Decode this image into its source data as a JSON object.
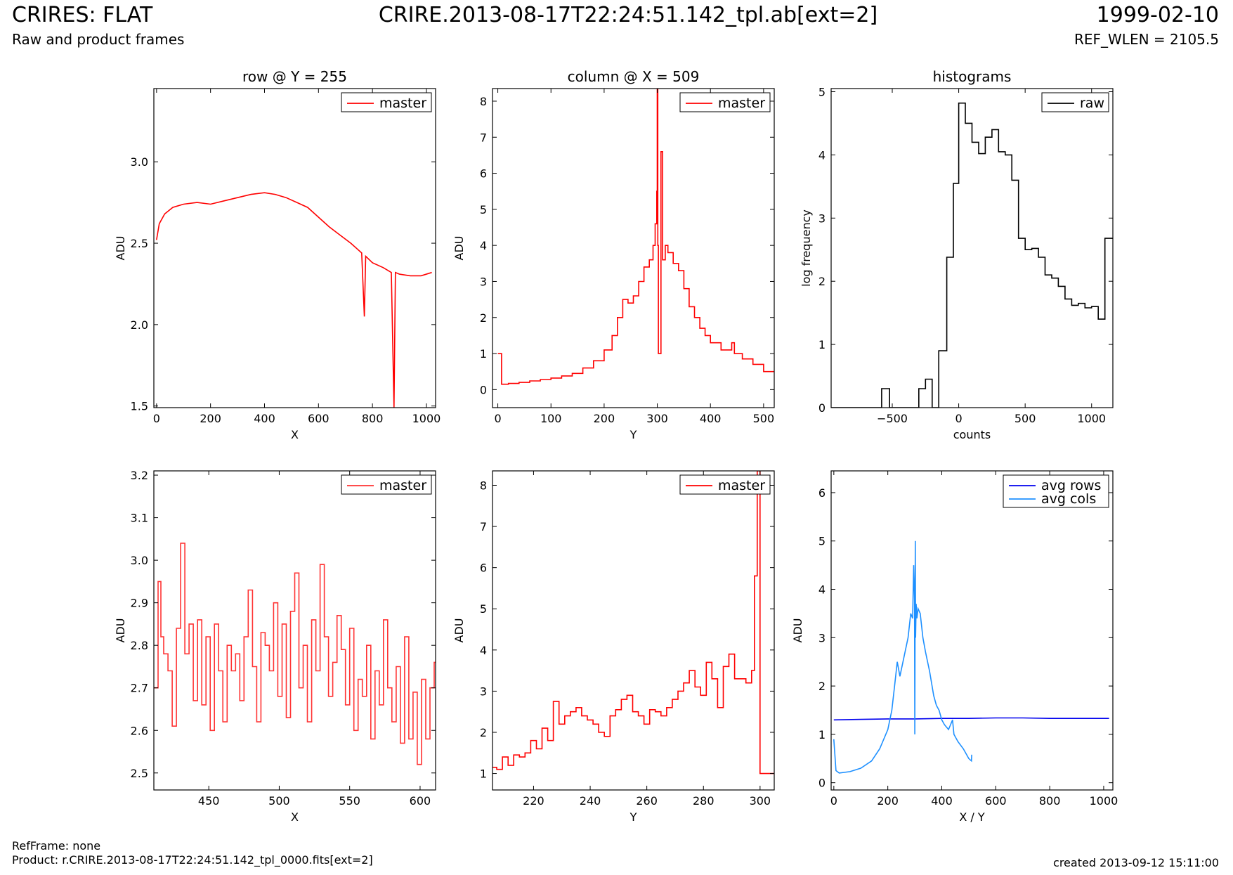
{
  "header": {
    "title": "CRIRES: FLAT",
    "subtitle": "Raw and product frames",
    "file": "CRIRE.2013-08-17T22:24:51.142_tpl.ab[ext=2]",
    "date": "1999-02-10",
    "ref_wlen": "REF_WLEN = 2105.5"
  },
  "footer": {
    "ref_frame": "RefFrame: none",
    "product": "Product: r.CRIRE.2013-08-17T22:24:51.142_tpl_0000.fits[ext=2]",
    "created": "created 2013-09-12 15:11:00"
  },
  "chart_data": [
    {
      "type": "line",
      "title": "row @ Y = 255",
      "xlabel": "X",
      "ylabel": "ADU",
      "xlim": [
        -10,
        1034
      ],
      "ylim": [
        1.49,
        3.45
      ],
      "xticks": [
        0,
        200,
        400,
        600,
        800,
        1000
      ],
      "yticks": [
        1.5,
        2.0,
        2.5,
        3.0
      ],
      "ytick_labels": [
        "1.5",
        "2.0",
        "2.5",
        "3.0"
      ],
      "legend_position": "top-right",
      "series": [
        {
          "name": "master",
          "color": "#ff0000",
          "step": false,
          "x": [
            0,
            10,
            30,
            60,
            100,
            150,
            200,
            250,
            300,
            350,
            400,
            440,
            480,
            520,
            560,
            600,
            640,
            680,
            720,
            760,
            770,
            775,
            800,
            840,
            870,
            880,
            885,
            900,
            940,
            980,
            1020
          ],
          "y": [
            2.52,
            2.62,
            2.68,
            2.72,
            2.74,
            2.75,
            2.74,
            2.76,
            2.78,
            2.8,
            2.81,
            2.8,
            2.78,
            2.75,
            2.72,
            2.66,
            2.6,
            2.55,
            2.5,
            2.44,
            2.05,
            2.42,
            2.38,
            2.35,
            2.32,
            1.49,
            2.32,
            2.31,
            2.3,
            2.3,
            2.32
          ]
        }
      ]
    },
    {
      "type": "line",
      "title": "column @ X = 509",
      "xlabel": "Y",
      "ylabel": "ADU",
      "xlim": [
        -10,
        520
      ],
      "ylim": [
        -0.5,
        8.35
      ],
      "xticks": [
        0,
        100,
        200,
        300,
        400,
        500
      ],
      "yticks": [
        0,
        1,
        2,
        3,
        4,
        5,
        6,
        7,
        8
      ],
      "legend_position": "top-right",
      "series": [
        {
          "name": "master",
          "color": "#ff0000",
          "step": true,
          "x": [
            0,
            6,
            7,
            20,
            40,
            60,
            80,
            100,
            120,
            140,
            160,
            180,
            200,
            215,
            225,
            235,
            245,
            255,
            265,
            275,
            285,
            292,
            296,
            299,
            300,
            301,
            302,
            303,
            305,
            307,
            310,
            315,
            320,
            330,
            340,
            350,
            360,
            370,
            380,
            390,
            400,
            420,
            440,
            445,
            460,
            480,
            500,
            510
          ],
          "y": [
            1.0,
            1.0,
            0.15,
            0.17,
            0.2,
            0.24,
            0.28,
            0.32,
            0.38,
            0.45,
            0.6,
            0.8,
            1.1,
            1.5,
            2.0,
            2.5,
            2.4,
            2.6,
            3.0,
            3.4,
            3.6,
            4.0,
            4.6,
            5.5,
            8.35,
            4.0,
            1.0,
            1.0,
            1.0,
            6.6,
            3.6,
            4.0,
            3.8,
            3.5,
            3.3,
            2.8,
            2.3,
            2.0,
            1.7,
            1.5,
            1.3,
            1.1,
            1.3,
            1.0,
            0.85,
            0.7,
            0.5,
            0.5
          ]
        }
      ]
    },
    {
      "type": "line",
      "title": "histograms",
      "xlabel": "counts",
      "ylabel": "log frequency",
      "xlim": [
        -960,
        1160
      ],
      "ylim": [
        0,
        5.05
      ],
      "xticks": [
        -500,
        0,
        500,
        1000
      ],
      "xtick_labels": [
        "−500",
        "0",
        "500",
        "1000"
      ],
      "yticks": [
        0,
        1,
        2,
        3,
        4,
        5
      ],
      "legend_position": "top-right",
      "series": [
        {
          "name": "raw",
          "color": "#000000",
          "step": true,
          "x": [
            -960,
            -580,
            -520,
            -300,
            -250,
            -200,
            -150,
            -90,
            -40,
            0,
            50,
            100,
            150,
            200,
            250,
            300,
            350,
            400,
            450,
            500,
            550,
            600,
            650,
            700,
            750,
            800,
            850,
            900,
            950,
            1000,
            1050,
            1100,
            1160
          ],
          "y": [
            0,
            0.3,
            0,
            0.3,
            0.45,
            0,
            0.9,
            2.38,
            3.55,
            4.82,
            4.5,
            4.2,
            4.02,
            4.28,
            4.4,
            4.05,
            4.0,
            3.6,
            2.68,
            2.5,
            2.52,
            2.38,
            2.1,
            2.05,
            1.92,
            1.72,
            1.62,
            1.65,
            1.58,
            1.6,
            1.4,
            2.68,
            2.68
          ]
        }
      ]
    },
    {
      "type": "line",
      "title": "",
      "xlabel": "X",
      "ylabel": "ADU",
      "xlim": [
        411,
        611
      ],
      "ylim": [
        2.46,
        3.21
      ],
      "xticks": [
        450,
        500,
        550,
        600
      ],
      "yticks": [
        2.5,
        2.6,
        2.7,
        2.8,
        2.9,
        3.0,
        3.1,
        3.2
      ],
      "ytick_labels": [
        "2.5",
        "2.6",
        "2.7",
        "2.8",
        "2.9",
        "3.0",
        "3.1",
        "3.2"
      ],
      "legend_position": "top-right",
      "series": [
        {
          "name": "master",
          "color": "#ff3333",
          "step": true,
          "x": [
            411,
            414,
            416,
            418,
            421,
            424,
            427,
            430,
            433,
            436,
            439,
            442,
            445,
            448,
            451,
            454,
            457,
            460,
            463,
            466,
            469,
            472,
            475,
            478,
            481,
            484,
            487,
            490,
            493,
            496,
            499,
            502,
            505,
            508,
            511,
            514,
            517,
            520,
            523,
            526,
            529,
            532,
            535,
            538,
            541,
            544,
            547,
            550,
            553,
            556,
            559,
            562,
            565,
            568,
            571,
            574,
            577,
            580,
            583,
            586,
            589,
            592,
            595,
            598,
            601,
            604,
            607,
            610
          ],
          "y": [
            2.7,
            2.95,
            2.82,
            2.78,
            2.74,
            2.61,
            2.84,
            3.04,
            2.78,
            2.85,
            2.67,
            2.86,
            2.66,
            2.82,
            2.6,
            2.85,
            2.74,
            2.62,
            2.8,
            2.74,
            2.78,
            2.67,
            2.82,
            2.93,
            2.75,
            2.62,
            2.83,
            2.8,
            2.74,
            2.9,
            2.68,
            2.85,
            2.63,
            2.88,
            2.97,
            2.7,
            2.8,
            2.62,
            2.86,
            2.74,
            2.99,
            2.82,
            2.68,
            2.76,
            2.87,
            2.79,
            2.66,
            2.84,
            2.6,
            2.72,
            2.68,
            2.8,
            2.58,
            2.74,
            2.66,
            2.86,
            2.7,
            2.62,
            2.75,
            2.57,
            2.82,
            2.58,
            2.69,
            2.52,
            2.72,
            2.58,
            2.7,
            2.76
          ]
        }
      ]
    },
    {
      "type": "line",
      "title": "",
      "xlabel": "Y",
      "ylabel": "ADU",
      "xlim": [
        205.5,
        305
      ],
      "ylim": [
        0.6,
        8.35
      ],
      "xticks": [
        220,
        240,
        260,
        280,
        300
      ],
      "yticks": [
        1,
        2,
        3,
        4,
        5,
        6,
        7,
        8
      ],
      "legend_position": "top-right",
      "series": [
        {
          "name": "master",
          "color": "#ff0000",
          "step": true,
          "x": [
            205.5,
            207,
            209,
            211,
            213,
            215,
            217,
            219,
            221,
            223,
            225,
            227,
            229,
            231,
            233,
            235,
            237,
            239,
            241,
            243,
            245,
            247,
            249,
            251,
            253,
            255,
            257,
            259,
            261,
            263,
            265,
            267,
            269,
            271,
            273,
            275,
            277,
            279,
            281,
            283,
            285,
            287,
            289,
            291,
            293,
            295,
            297,
            298,
            299,
            300,
            301,
            305
          ],
          "y": [
            1.15,
            1.1,
            1.4,
            1.2,
            1.45,
            1.4,
            1.5,
            1.8,
            1.6,
            2.1,
            1.8,
            2.75,
            2.2,
            2.4,
            2.5,
            2.6,
            2.4,
            2.3,
            2.2,
            2.0,
            1.9,
            2.4,
            2.55,
            2.8,
            2.9,
            2.5,
            2.4,
            2.2,
            2.55,
            2.5,
            2.4,
            2.6,
            2.8,
            3.0,
            3.2,
            3.5,
            3.1,
            2.9,
            3.7,
            3.3,
            2.6,
            3.6,
            3.9,
            3.3,
            3.3,
            3.2,
            3.5,
            5.8,
            8.35,
            1.0,
            1.0,
            1.0
          ]
        }
      ]
    },
    {
      "type": "line",
      "title": "",
      "xlabel": "X / Y",
      "ylabel": "ADU",
      "xlim": [
        -10,
        1034
      ],
      "ylim": [
        -0.15,
        6.45
      ],
      "xticks": [
        0,
        200,
        400,
        600,
        800,
        1000
      ],
      "yticks": [
        0,
        1,
        2,
        3,
        4,
        5,
        6
      ],
      "legend_position": "top-right",
      "series": [
        {
          "name": "avg rows",
          "color": "#0000ee",
          "step": false,
          "x": [
            0,
            100,
            200,
            300,
            400,
            500,
            600,
            700,
            800,
            900,
            1020
          ],
          "y": [
            1.3,
            1.31,
            1.32,
            1.32,
            1.33,
            1.33,
            1.34,
            1.34,
            1.33,
            1.33,
            1.33
          ]
        },
        {
          "name": "avg cols",
          "color": "#1e90ff",
          "step": false,
          "x": [
            0,
            8,
            20,
            60,
            100,
            140,
            170,
            200,
            215,
            225,
            235,
            245,
            260,
            275,
            285,
            292,
            296,
            299,
            300,
            302,
            303,
            305,
            308,
            312,
            320,
            330,
            340,
            355,
            370,
            380,
            390,
            400,
            410,
            425,
            440,
            445,
            460,
            480,
            500,
            510,
            511
          ],
          "y": [
            0.9,
            0.25,
            0.2,
            0.23,
            0.3,
            0.45,
            0.7,
            1.1,
            1.5,
            2.0,
            2.5,
            2.2,
            2.6,
            3.0,
            3.5,
            3.4,
            4.5,
            3.8,
            1.0,
            5.0,
            3.0,
            3.7,
            3.4,
            3.6,
            3.5,
            3.0,
            2.7,
            2.3,
            1.8,
            1.6,
            1.5,
            1.3,
            1.2,
            1.1,
            1.3,
            1.0,
            0.85,
            0.7,
            0.5,
            0.45,
            0.58
          ]
        }
      ]
    }
  ]
}
